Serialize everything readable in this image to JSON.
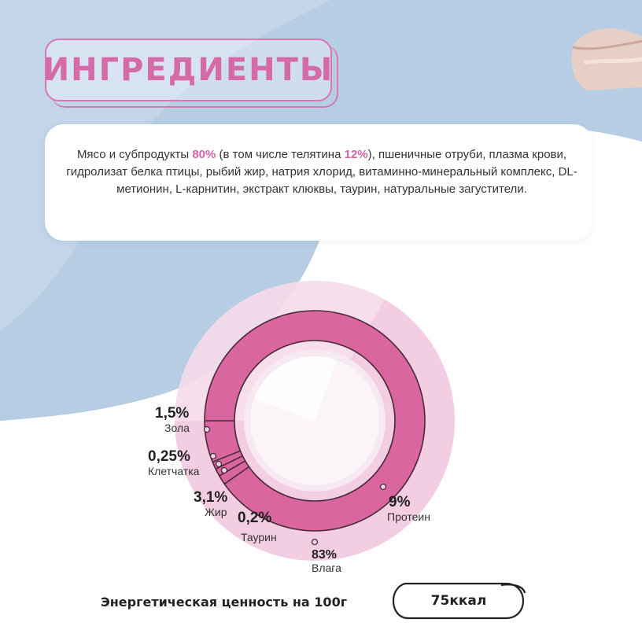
{
  "title": "ИНГРЕДИЕНТЫ",
  "ingredients": {
    "part1": "Мясо и субпродукты ",
    "meat_pct": "80%",
    "part2": " (в том числе телятина ",
    "veal_pct": "12%",
    "part3": "), пшеничные отруби, плазма крови, гидролизат белка птицы, рыбий жир, натрия хлорид, витаминно-минеральный комплекс, DL-метионин, L-карнитин, экстракт клюквы, таурин, натуральные загустители."
  },
  "colors": {
    "accent": "#d56aa9",
    "ring": "#d9669f",
    "halo": "#f1c4dc",
    "background_blue": "#b6cde4"
  },
  "chart_data": {
    "type": "pie",
    "categories": [
      "Влага",
      "Протеин",
      "Зола",
      "Клетчатка",
      "Жир",
      "Таурин"
    ],
    "values": [
      83,
      9,
      1.5,
      0.25,
      3.1,
      0.2
    ],
    "value_labels": [
      "83%",
      "9%",
      "1,5%",
      "0,25%",
      "3,1%",
      "0,2%"
    ],
    "title": "",
    "legend": "labels beside slices"
  },
  "energy": {
    "label": "Энергетическая ценность на 100г",
    "value": "75ккал"
  }
}
